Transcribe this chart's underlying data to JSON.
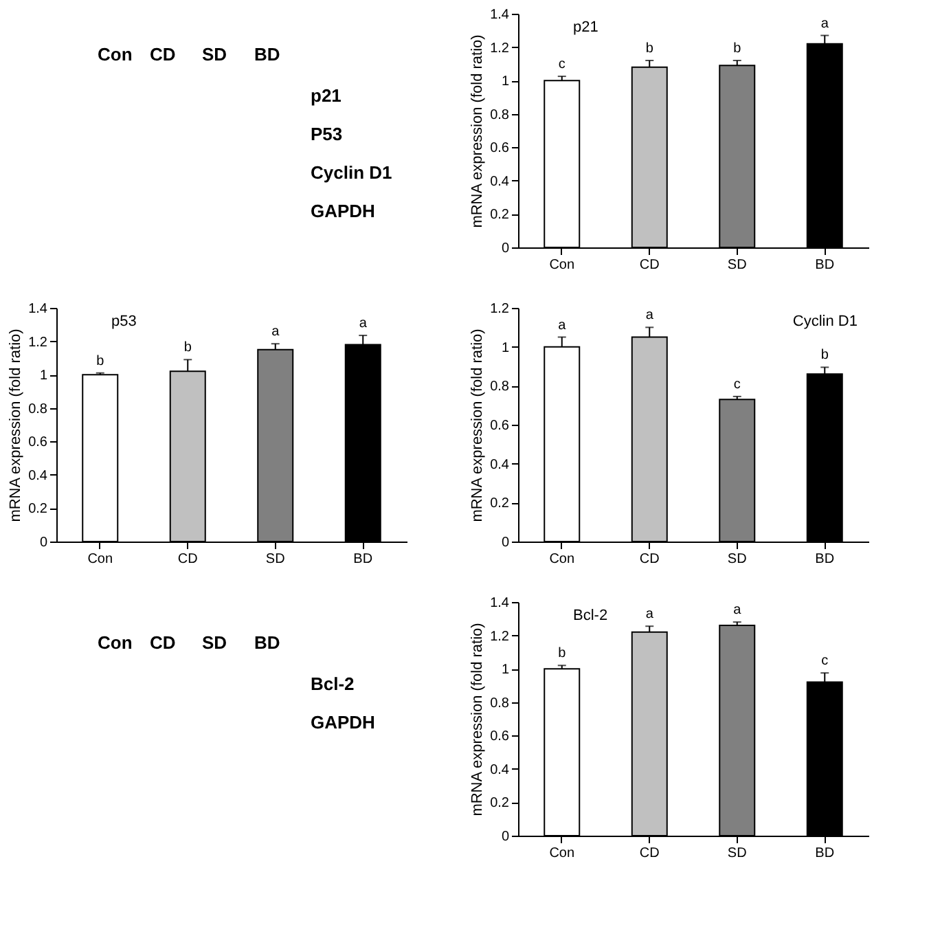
{
  "chart_data": [
    {
      "type": "other",
      "categories": [
        "Con",
        "CD",
        "SD",
        "BD"
      ],
      "annotations": [
        "p21",
        "P53",
        "Cyclin D1",
        "GAPDH"
      ]
    },
    {
      "type": "bar",
      "title": "p21",
      "ylabel": "mRNA expression (fold ratio)",
      "categories": [
        "Con",
        "CD",
        "SD",
        "BD"
      ],
      "values": [
        1.0,
        1.08,
        1.09,
        1.22
      ],
      "colors": [
        "#ffffff",
        "#c0c0c0",
        "#808080",
        "#000000"
      ],
      "errors": [
        [
          1.0,
          1.025
        ],
        [
          1.08,
          1.12
        ],
        [
          1.09,
          1.12
        ],
        [
          1.22,
          1.27
        ]
      ],
      "ylim": [
        0,
        1.4
      ],
      "yticks": [
        0,
        0.2,
        0.4,
        0.6,
        0.8,
        1,
        1.2,
        1.4
      ],
      "grid": false,
      "annotations": [
        {
          "text": "c",
          "x": "Con",
          "y": 1.025
        },
        {
          "text": "b",
          "x": "CD",
          "y": 1.12
        },
        {
          "text": "b",
          "x": "SD",
          "y": 1.12
        },
        {
          "text": "a",
          "x": "BD",
          "y": 1.27
        }
      ]
    },
    {
      "type": "bar",
      "title": "p53",
      "ylabel": "mRNA expression (fold ratio)",
      "categories": [
        "Con",
        "CD",
        "SD",
        "BD"
      ],
      "values": [
        1.0,
        1.02,
        1.15,
        1.18
      ],
      "colors": [
        "#ffffff",
        "#c0c0c0",
        "#808080",
        "#000000"
      ],
      "errors": [
        [
          1.0,
          1.01
        ],
        [
          1.02,
          1.09
        ],
        [
          1.15,
          1.185
        ],
        [
          1.18,
          1.235
        ]
      ],
      "ylim": [
        0,
        1.4
      ],
      "yticks": [
        0,
        0.2,
        0.4,
        0.6,
        0.8,
        1,
        1.2,
        1.4
      ],
      "grid": false,
      "annotations": [
        {
          "text": "b",
          "x": "Con",
          "y": 1.01
        },
        {
          "text": "b",
          "x": "CD",
          "y": 1.09
        },
        {
          "text": "a",
          "x": "SD",
          "y": 1.185
        },
        {
          "text": "a",
          "x": "BD",
          "y": 1.235
        }
      ]
    },
    {
      "type": "bar",
      "title": "Cyclin D1",
      "ylabel": "mRNA expression (fold ratio)",
      "categories": [
        "Con",
        "CD",
        "SD",
        "BD"
      ],
      "values": [
        1.0,
        1.05,
        0.73,
        0.86
      ],
      "colors": [
        "#ffffff",
        "#c0c0c0",
        "#808080",
        "#000000"
      ],
      "errors": [
        [
          1.0,
          1.05
        ],
        [
          1.05,
          1.1
        ],
        [
          0.73,
          0.745
        ],
        [
          0.86,
          0.895
        ]
      ],
      "ylim": [
        0,
        1.2
      ],
      "yticks": [
        0,
        0.2,
        0.4,
        0.6,
        0.8,
        1,
        1.2
      ],
      "grid": false,
      "annotations": [
        {
          "text": "a",
          "x": "Con",
          "y": 1.05
        },
        {
          "text": "a",
          "x": "CD",
          "y": 1.1
        },
        {
          "text": "c",
          "x": "SD",
          "y": 0.745
        },
        {
          "text": "b",
          "x": "BD",
          "y": 0.895
        }
      ]
    },
    {
      "type": "other",
      "categories": [
        "Con",
        "CD",
        "SD",
        "BD"
      ],
      "annotations": [
        "Bcl-2",
        "GAPDH"
      ]
    },
    {
      "type": "bar",
      "title": "Bcl-2",
      "ylabel": "mRNA expression (fold ratio)",
      "categories": [
        "Con",
        "CD",
        "SD",
        "BD"
      ],
      "values": [
        1.0,
        1.22,
        1.26,
        0.92
      ],
      "colors": [
        "#ffffff",
        "#c0c0c0",
        "#808080",
        "#000000"
      ],
      "errors": [
        [
          1.0,
          1.02
        ],
        [
          1.22,
          1.255
        ],
        [
          1.26,
          1.28
        ],
        [
          0.92,
          0.975
        ]
      ],
      "ylim": [
        0,
        1.4
      ],
      "yticks": [
        0,
        0.2,
        0.4,
        0.6,
        0.8,
        1,
        1.2,
        1.4
      ],
      "grid": false,
      "annotations": [
        {
          "text": "b",
          "x": "Con",
          "y": 1.02
        },
        {
          "text": "a",
          "x": "CD",
          "y": 1.255
        },
        {
          "text": "a",
          "x": "SD",
          "y": 1.28
        },
        {
          "text": "c",
          "x": "BD",
          "y": 0.975
        }
      ]
    }
  ]
}
